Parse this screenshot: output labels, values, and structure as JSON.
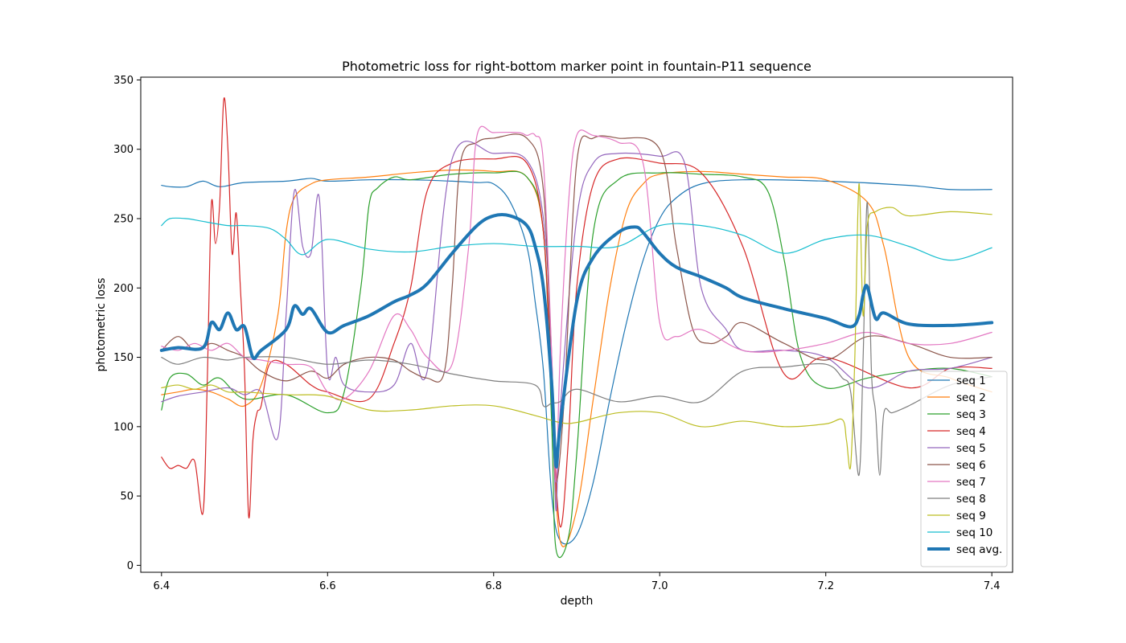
{
  "chart_data": {
    "type": "line",
    "title": "Photometric loss for right-bottom marker point in fountain-P11 sequence",
    "xlabel": "depth",
    "ylabel": "photometric loss",
    "xlim": [
      6.375,
      7.425
    ],
    "ylim": [
      -5,
      352
    ],
    "xticks": [
      "6.4",
      "6.6",
      "6.8",
      "7.0",
      "7.2",
      "7.4"
    ],
    "xtick_values": [
      6.4,
      6.6,
      6.8,
      7.0,
      7.2,
      7.4
    ],
    "yticks": [
      "0",
      "50",
      "100",
      "150",
      "200",
      "250",
      "300",
      "350"
    ],
    "ytick_values": [
      0,
      50,
      100,
      150,
      200,
      250,
      300,
      350
    ],
    "grid": false,
    "legend_position": "lower-right",
    "series": [
      {
        "name": "seq 1",
        "color": "#1f77b4",
        "width": 1.2,
        "x": [
          6.4,
          6.41,
          6.43,
          6.45,
          6.47,
          6.5,
          6.55,
          6.58,
          6.6,
          6.65,
          6.7,
          6.75,
          6.78,
          6.8,
          6.82,
          6.84,
          6.85,
          6.86,
          6.87,
          6.88,
          6.9,
          6.92,
          6.94,
          6.96,
          6.98,
          7.0,
          7.02,
          7.05,
          7.1,
          7.2,
          7.3,
          7.35,
          7.4
        ],
        "y": [
          274,
          273,
          273,
          277,
          273,
          276,
          277,
          279,
          277,
          278,
          278,
          277,
          276,
          275,
          262,
          230,
          190,
          140,
          50,
          18,
          22,
          60,
          120,
          175,
          220,
          250,
          265,
          275,
          278,
          277,
          274,
          271,
          271
        ]
      },
      {
        "name": "seq 2",
        "color": "#ff7f0e",
        "width": 1.2,
        "x": [
          6.4,
          6.42,
          6.44,
          6.46,
          6.48,
          6.5,
          6.52,
          6.54,
          6.55,
          6.56,
          6.58,
          6.6,
          6.65,
          6.7,
          6.75,
          6.8,
          6.84,
          6.86,
          6.87,
          6.88,
          6.9,
          6.92,
          6.94,
          6.96,
          6.98,
          7.0,
          7.05,
          7.1,
          7.15,
          7.2,
          7.25,
          7.27,
          7.3,
          7.35,
          7.4
        ],
        "y": [
          123,
          125,
          127,
          125,
          120,
          115,
          130,
          180,
          240,
          265,
          275,
          278,
          280,
          283,
          285,
          284,
          280,
          240,
          120,
          18,
          40,
          120,
          200,
          255,
          275,
          282,
          284,
          282,
          280,
          278,
          262,
          230,
          150,
          135,
          125
        ]
      },
      {
        "name": "seq 3",
        "color": "#2ca02c",
        "width": 1.2,
        "x": [
          6.4,
          6.41,
          6.43,
          6.45,
          6.47,
          6.5,
          6.55,
          6.6,
          6.62,
          6.64,
          6.65,
          6.66,
          6.68,
          6.7,
          6.75,
          6.8,
          6.84,
          6.86,
          6.87,
          6.875,
          6.89,
          6.9,
          6.92,
          6.95,
          7.0,
          7.05,
          7.1,
          7.13,
          7.15,
          7.17,
          7.2,
          7.25,
          7.3,
          7.35,
          7.4
        ],
        "y": [
          112,
          135,
          138,
          130,
          135,
          120,
          123,
          110,
          125,
          200,
          260,
          272,
          280,
          278,
          282,
          283,
          280,
          240,
          100,
          12,
          20,
          80,
          240,
          278,
          283,
          282,
          280,
          270,
          220,
          150,
          128,
          135,
          140,
          142,
          136
        ]
      },
      {
        "name": "seq 4",
        "color": "#d62728",
        "width": 1.2,
        "x": [
          6.4,
          6.41,
          6.42,
          6.43,
          6.44,
          6.45,
          6.455,
          6.46,
          6.465,
          6.47,
          6.475,
          6.48,
          6.485,
          6.49,
          6.495,
          6.5,
          6.505,
          6.51,
          6.515,
          6.52,
          6.53,
          6.55,
          6.58,
          6.6,
          6.65,
          6.68,
          6.7,
          6.72,
          6.75,
          6.8,
          6.84,
          6.86,
          6.87,
          6.88,
          6.89,
          6.9,
          6.92,
          6.95,
          7.0,
          7.05,
          7.1,
          7.15,
          7.2,
          7.3,
          7.35,
          7.4
        ],
        "y": [
          78,
          70,
          72,
          70,
          75,
          38,
          130,
          260,
          232,
          260,
          336,
          300,
          225,
          254,
          200,
          140,
          35,
          90,
          110,
          115,
          145,
          145,
          130,
          125,
          120,
          160,
          200,
          270,
          290,
          293,
          290,
          240,
          120,
          28,
          90,
          200,
          275,
          293,
          290,
          283,
          230,
          138,
          150,
          128,
          142,
          142
        ]
      },
      {
        "name": "seq 5",
        "color": "#9467bd",
        "width": 1.2,
        "x": [
          6.4,
          6.42,
          6.45,
          6.48,
          6.5,
          6.52,
          6.54,
          6.55,
          6.56,
          6.57,
          6.58,
          6.59,
          6.6,
          6.61,
          6.62,
          6.65,
          6.68,
          6.7,
          6.72,
          6.75,
          6.8,
          6.84,
          6.86,
          6.87,
          6.875,
          6.88,
          6.9,
          6.92,
          6.95,
          7.0,
          7.03,
          7.05,
          7.08,
          7.1,
          7.15,
          7.2,
          7.25,
          7.3,
          7.35,
          7.4
        ],
        "y": [
          118,
          122,
          125,
          128,
          123,
          125,
          92,
          180,
          270,
          230,
          225,
          265,
          140,
          150,
          130,
          125,
          130,
          160,
          140,
          293,
          297,
          292,
          250,
          150,
          40,
          110,
          250,
          290,
          297,
          295,
          290,
          200,
          170,
          155,
          155,
          150,
          128,
          140,
          142,
          150
        ]
      },
      {
        "name": "seq 6",
        "color": "#8c564b",
        "width": 1.2,
        "x": [
          6.4,
          6.42,
          6.44,
          6.46,
          6.48,
          6.5,
          6.52,
          6.55,
          6.58,
          6.6,
          6.62,
          6.65,
          6.68,
          6.7,
          6.72,
          6.74,
          6.75,
          6.76,
          6.78,
          6.8,
          6.84,
          6.86,
          6.87,
          6.875,
          6.885,
          6.9,
          6.92,
          6.95,
          7.0,
          7.02,
          7.04,
          7.06,
          7.08,
          7.1,
          7.15,
          7.2,
          7.25,
          7.3,
          7.35,
          7.4
        ],
        "y": [
          155,
          165,
          155,
          160,
          155,
          150,
          140,
          133,
          140,
          135,
          145,
          150,
          148,
          140,
          135,
          138,
          200,
          290,
          305,
          308,
          308,
          270,
          130,
          60,
          120,
          290,
          308,
          308,
          300,
          230,
          170,
          160,
          165,
          175,
          160,
          148,
          165,
          160,
          150,
          150
        ]
      },
      {
        "name": "seq 7",
        "color": "#e377c2",
        "width": 1.2,
        "x": [
          6.4,
          6.42,
          6.44,
          6.46,
          6.48,
          6.5,
          6.52,
          6.55,
          6.58,
          6.6,
          6.62,
          6.65,
          6.68,
          6.7,
          6.72,
          6.75,
          6.77,
          6.78,
          6.8,
          6.83,
          6.84,
          6.85,
          6.86,
          6.87,
          6.875,
          6.88,
          6.89,
          6.9,
          6.92,
          6.95,
          6.98,
          7.0,
          7.02,
          7.05,
          7.1,
          7.15,
          7.2,
          7.25,
          7.3,
          7.35,
          7.4
        ],
        "y": [
          158,
          155,
          160,
          155,
          160,
          150,
          148,
          145,
          143,
          125,
          120,
          140,
          180,
          170,
          150,
          145,
          230,
          310,
          312,
          312,
          310,
          310,
          290,
          150,
          60,
          150,
          260,
          310,
          310,
          305,
          290,
          175,
          165,
          170,
          155,
          155,
          160,
          168,
          160,
          160,
          168
        ]
      },
      {
        "name": "seq 8",
        "color": "#7f7f7f",
        "width": 1.2,
        "x": [
          6.4,
          6.42,
          6.45,
          6.48,
          6.5,
          6.55,
          6.6,
          6.65,
          6.7,
          6.75,
          6.8,
          6.85,
          6.86,
          6.87,
          6.88,
          6.9,
          6.95,
          7.0,
          7.05,
          7.1,
          7.15,
          7.2,
          7.22,
          7.23,
          7.24,
          7.245,
          7.25,
          7.255,
          7.26,
          7.265,
          7.27,
          7.28,
          7.3,
          7.35,
          7.4
        ],
        "y": [
          150,
          145,
          150,
          148,
          150,
          150,
          145,
          148,
          145,
          138,
          133,
          130,
          115,
          117,
          118,
          127,
          118,
          122,
          118,
          140,
          143,
          145,
          135,
          125,
          65,
          150,
          262,
          140,
          110,
          65,
          110,
          110,
          115,
          130,
          136
        ]
      },
      {
        "name": "seq 9",
        "color": "#bcbd22",
        "width": 1.2,
        "x": [
          6.4,
          6.42,
          6.44,
          6.46,
          6.48,
          6.5,
          6.55,
          6.6,
          6.65,
          6.7,
          6.75,
          6.8,
          6.85,
          6.88,
          6.9,
          6.95,
          7.0,
          7.05,
          7.1,
          7.15,
          7.2,
          7.22,
          7.225,
          7.23,
          7.235,
          7.24,
          7.245,
          7.25,
          7.26,
          7.28,
          7.3,
          7.35,
          7.4
        ],
        "y": [
          128,
          130,
          127,
          130,
          125,
          125,
          123,
          122,
          112,
          112,
          115,
          115,
          108,
          103,
          103,
          110,
          110,
          100,
          104,
          100,
          102,
          105,
          90,
          72,
          150,
          275,
          180,
          245,
          255,
          258,
          252,
          255,
          253
        ]
      },
      {
        "name": "seq 10",
        "color": "#17becf",
        "width": 1.2,
        "x": [
          6.4,
          6.41,
          6.43,
          6.45,
          6.48,
          6.5,
          6.53,
          6.55,
          6.57,
          6.6,
          6.65,
          6.7,
          6.75,
          6.8,
          6.85,
          6.9,
          6.95,
          7.0,
          7.05,
          7.1,
          7.15,
          7.2,
          7.25,
          7.3,
          7.35,
          7.4
        ],
        "y": [
          245,
          250,
          250,
          248,
          245,
          245,
          243,
          235,
          224,
          235,
          228,
          226,
          230,
          232,
          230,
          230,
          230,
          245,
          245,
          238,
          225,
          235,
          238,
          230,
          220,
          229
        ]
      },
      {
        "name": "seq avg.",
        "color": "#1f77b4",
        "width": 4,
        "x": [
          6.4,
          6.42,
          6.45,
          6.46,
          6.47,
          6.48,
          6.49,
          6.5,
          6.51,
          6.52,
          6.55,
          6.56,
          6.57,
          6.58,
          6.6,
          6.62,
          6.65,
          6.68,
          6.7,
          6.72,
          6.75,
          6.78,
          6.8,
          6.82,
          6.84,
          6.85,
          6.86,
          6.87,
          6.875,
          6.88,
          6.9,
          6.92,
          6.95,
          6.97,
          6.98,
          7.0,
          7.02,
          7.05,
          7.08,
          7.1,
          7.15,
          7.2,
          7.23,
          7.24,
          7.245,
          7.25,
          7.26,
          7.27,
          7.3,
          7.35,
          7.4
        ],
        "y": [
          155,
          157,
          157,
          175,
          170,
          182,
          170,
          172,
          150,
          155,
          170,
          187,
          181,
          185,
          168,
          173,
          180,
          190,
          195,
          203,
          225,
          245,
          252,
          252,
          245,
          230,
          200,
          130,
          72,
          100,
          190,
          222,
          240,
          244,
          240,
          225,
          215,
          208,
          200,
          193,
          185,
          178,
          172,
          180,
          195,
          201,
          178,
          182,
          174,
          173,
          175
        ]
      }
    ]
  }
}
